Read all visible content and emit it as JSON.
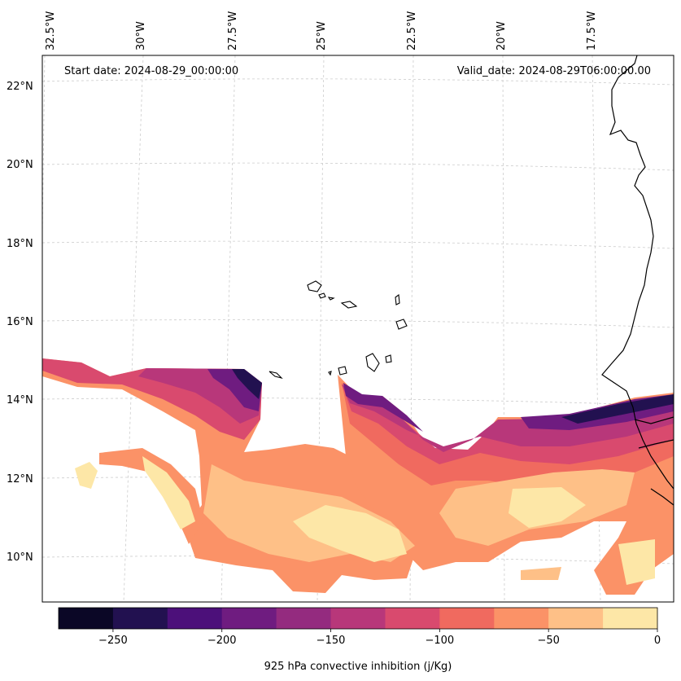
{
  "annotations": {
    "start_date": "Start date: 2024-08-29_00:00:00",
    "valid_date": "Valid_date: 2024-08-29T06:00:00.00"
  },
  "longitude_labels": [
    "32.5°W",
    "30°W",
    "27.5°W",
    "25°W",
    "22.5°W",
    "20°W",
    "17.5°W"
  ],
  "latitude_labels": [
    "22°N",
    "20°N",
    "18°N",
    "16°N",
    "14°N",
    "12°N",
    "10°N"
  ],
  "colorbar": {
    "label": "925 hPa convective inhibition (j/Kg)",
    "tick_labels": [
      "−250",
      "−200",
      "−150",
      "−100",
      "−50",
      "0"
    ],
    "levels": [
      -275,
      -250,
      -225,
      -200,
      -175,
      -150,
      -125,
      -100,
      -75,
      -50,
      -25,
      0
    ],
    "colors": [
      "#0b0726",
      "#221150",
      "#4c107a",
      "#6f1c80",
      "#942b7f",
      "#b8377a",
      "#d94a6e",
      "#f06a5f",
      "#fb9267",
      "#fec087",
      "#fde7a7"
    ]
  },
  "chart_data": {
    "type": "filled-contour map",
    "variable": "925 hPa convective inhibition",
    "units": "j/Kg",
    "region": {
      "lon_range": [
        -32.5,
        -15.5
      ],
      "lat_range": [
        9,
        22.5
      ]
    },
    "levels": [
      -275,
      -250,
      -225,
      -200,
      -175,
      -150,
      -125,
      -100,
      -75,
      -50,
      -25,
      0
    ],
    "colorbar_ticks": [
      -250,
      -200,
      -150,
      -100,
      -50,
      0
    ],
    "gridlines": true
  }
}
